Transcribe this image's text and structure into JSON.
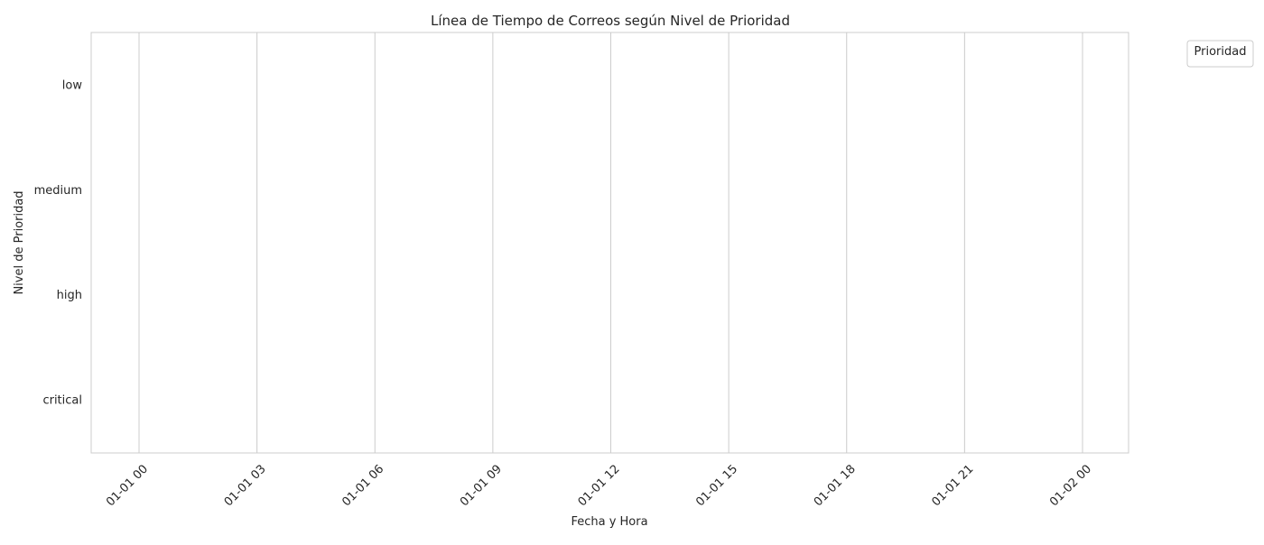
{
  "chart_data": {
    "type": "scatter",
    "title": "Línea de Tiempo de Correos según Nivel de Prioridad",
    "xlabel": "Fecha y Hora",
    "ylabel": "Nivel de Prioridad",
    "x_ticks": [
      "01-01 00",
      "01-01 03",
      "01-01 06",
      "01-01 09",
      "01-01 12",
      "01-01 15",
      "01-01 18",
      "01-01 21",
      "01-02 00"
    ],
    "y_categories": [
      "low",
      "medium",
      "high",
      "critical"
    ],
    "xlim": [
      "2024-01-01 00:00",
      "2024-01-02 00:00"
    ],
    "series": [],
    "legend": {
      "title": "Prioridad",
      "placement": "outside-top-right",
      "entries": []
    },
    "grid": {
      "x": true,
      "y": false
    },
    "colors": {
      "grid": "#cccccc",
      "frame": "#cccccc",
      "background": "#ffffff",
      "text": "#262626"
    }
  }
}
